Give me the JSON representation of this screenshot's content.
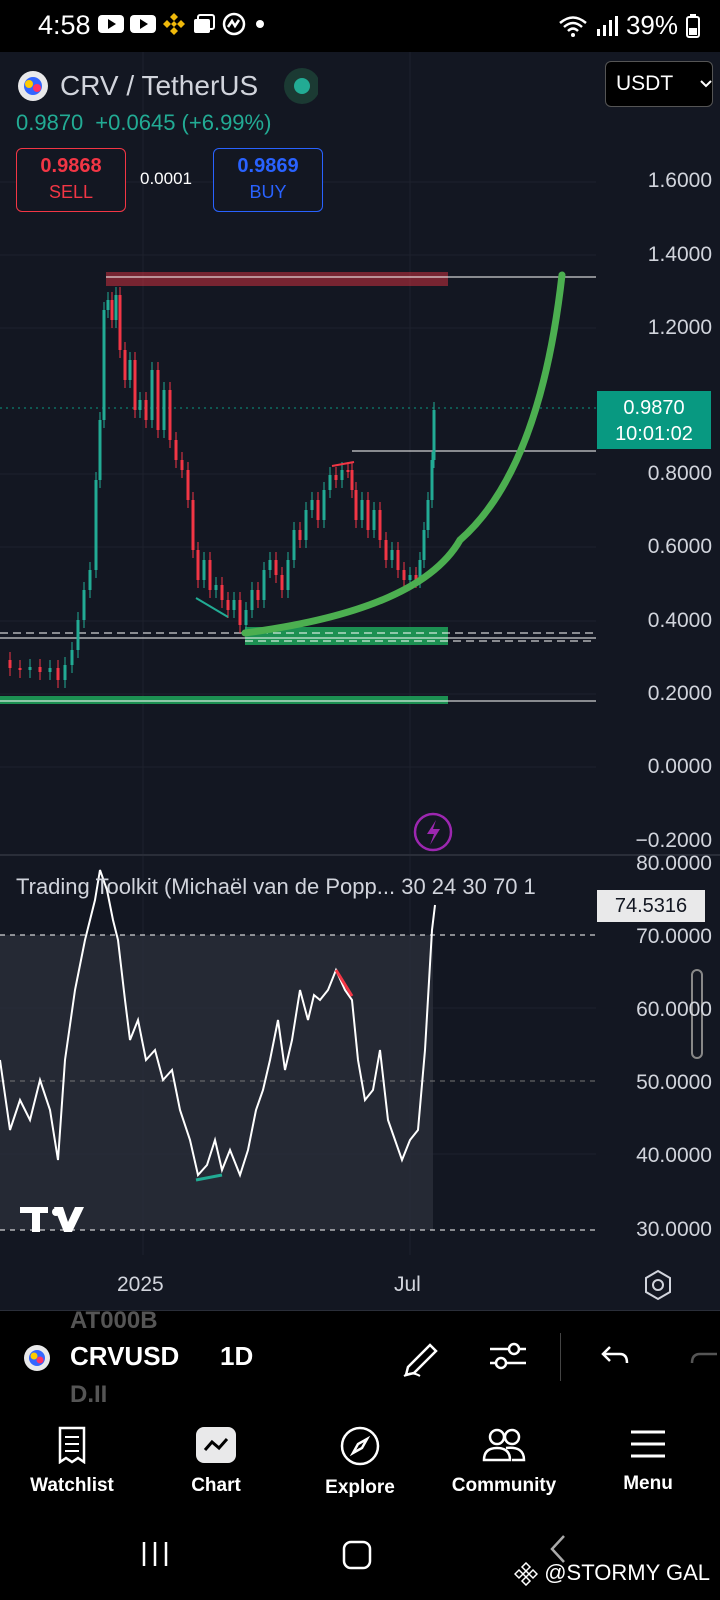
{
  "status": {
    "time": "4:58",
    "battery": "39%"
  },
  "symbol": {
    "name": "CRV / TetherUS",
    "price": "0.9870",
    "change": "+0.0645 (+6.99%)"
  },
  "trade": {
    "sell_price": "0.9868",
    "sell_label": "SELL",
    "buy_price": "0.9869",
    "buy_label": "BUY",
    "spread": "0.0001"
  },
  "currency": {
    "selected": "USDT"
  },
  "last_price_label": {
    "price": "0.9870",
    "countdown": "10:01:02"
  },
  "price_axis": [
    "1.6000",
    "1.4000",
    "1.2000",
    "0.8000",
    "0.6000",
    "0.4000",
    "0.2000",
    "0.0000",
    "−0.2000"
  ],
  "indicator": {
    "title": "Trading Toolkit (Michaël van de Popp... 30 24 30 70 1",
    "value": "74.5316"
  },
  "rsi_axis": [
    "80.0000",
    "70.0000",
    "60.0000",
    "50.0000",
    "40.0000",
    "30.0000"
  ],
  "time_axis": [
    "2025",
    "Jul"
  ],
  "toolbar": {
    "symbol": "CRVUSD",
    "interval": "1D",
    "ghost_top": "AT000B",
    "ghost_bottom": "D.II"
  },
  "nav": {
    "watchlist": "Watchlist",
    "chart": "Chart",
    "explore": "Explore",
    "community": "Community",
    "menu": "Menu"
  },
  "watermark": "@STORMY GAL",
  "colors": {
    "bg": "#131722",
    "up": "#22ab94",
    "down": "#f23645",
    "curve": "#4caf50",
    "buy": "#2962ff"
  }
}
